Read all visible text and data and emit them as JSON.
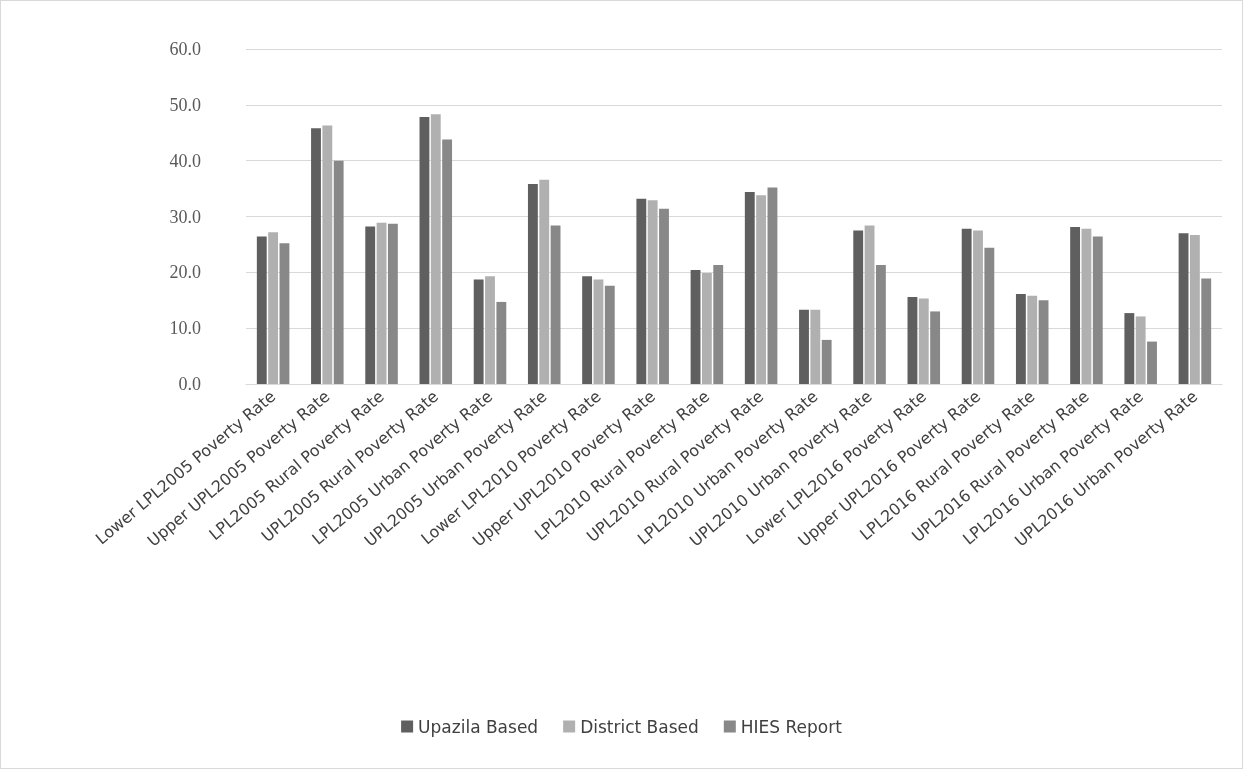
{
  "chart_data": {
    "type": "bar",
    "categories": [
      "Lower LPL2005 Poverty Rate",
      "Upper UPL2005 Poverty Rate",
      "LPL2005 Rural Poverty Rate",
      "UPL2005 Rural Poverty Rate",
      "LPL2005 Urban Poverty Rate",
      "UPL2005 Urban Poverty Rate",
      "Lower LPL2010 Poverty Rate",
      "Upper UPL2010 Poverty Rate",
      "LPL2010 Rural Poverty Rate",
      "UPL2010 Rural Poverty Rate",
      "LPL2010 Urban Poverty Rate",
      "UPL2010 Urban Poverty Rate",
      "Lower LPL2016 Poverty Rate",
      "Upper UPL2016 Poverty Rate",
      "LPL2016 Rural Poverty Rate",
      "UPL2016 Rural Poverty Rate",
      "LPL2016 Urban Poverty Rate",
      "UPL2016 Urban Poverty Rate"
    ],
    "series": [
      {
        "name": "Upazila Based",
        "color": "#5f5f5f",
        "values": [
          26.4,
          45.8,
          28.2,
          47.8,
          18.7,
          35.8,
          19.3,
          33.2,
          20.4,
          34.4,
          13.3,
          27.5,
          15.6,
          27.8,
          16.1,
          28.1,
          12.7,
          27.0
        ]
      },
      {
        "name": "District Based",
        "color": "#b0b0b0",
        "values": [
          27.2,
          46.3,
          28.9,
          48.3,
          19.3,
          36.6,
          18.7,
          32.9,
          19.9,
          33.8,
          13.3,
          28.4,
          15.3,
          27.5,
          15.8,
          27.8,
          12.1,
          26.7
        ]
      },
      {
        "name": "HIES Report",
        "color": "#888888",
        "values": [
          25.2,
          40.0,
          28.7,
          43.8,
          14.7,
          28.4,
          17.6,
          31.4,
          21.3,
          35.2,
          7.9,
          21.3,
          13.0,
          24.4,
          15.0,
          26.4,
          7.6,
          18.9
        ]
      }
    ],
    "ylim": [
      0,
      60
    ],
    "yticks": [
      {
        "value": 0,
        "label": "0.0"
      },
      {
        "value": 10,
        "label": "10.0"
      },
      {
        "value": 20,
        "label": "20.0"
      },
      {
        "value": 30,
        "label": "30.0"
      },
      {
        "value": 40,
        "label": "40.0"
      },
      {
        "value": 50,
        "label": "50.0"
      },
      {
        "value": 60,
        "label": "60.0"
      }
    ],
    "grid": "y",
    "legend": "bottom"
  }
}
